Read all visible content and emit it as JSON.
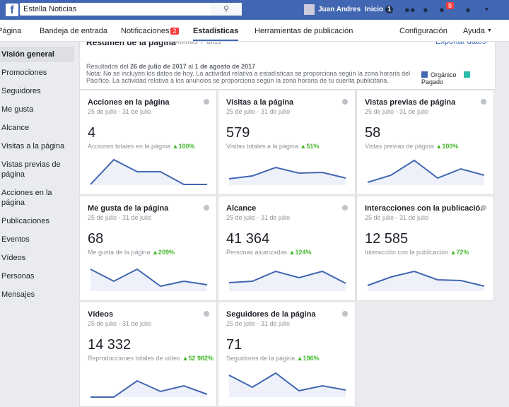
{
  "topbar": {
    "search": "Estella Noticias",
    "user": "Juan Andres",
    "home": "Inicio",
    "home_count": "1",
    "notif_count": "8"
  },
  "nav": {
    "items": [
      "Página",
      "Bandeja de entrada",
      "Notificaciones",
      "Estadísticas",
      "Herramientas de publicación"
    ],
    "notif_badge": "2",
    "config": "Configuración",
    "help": "Ayuda"
  },
  "sidebar": [
    "Visión general",
    "Promociones",
    "Seguidores",
    "Me gusta",
    "Alcance",
    "Visitas a la página",
    "Vistas previas de página",
    "Acciones en la página",
    "Publicaciones",
    "Eventos",
    "Vídeos",
    "Personas",
    "Mensajes"
  ],
  "summary": {
    "title": "Resumen de la página",
    "period": "Últimos 7 días",
    "export": "Exportar datos",
    "results_prefix": "Resultados del",
    "date_from": "26 de julio de 2017",
    "al": "al",
    "date_to": "1 de agosto de 2017",
    "note": "Nota: No se incluyen los datos de hoy. La actividad relativa a estadísticas se proporciona según la zona horaria del Pacífico. La actividad relativa a los anuncios se proporciona según la zona horaria de tu cuenta publicitaria.",
    "legend": [
      {
        "name": "Orgánico",
        "color": "#4267b2"
      },
      {
        "name": "Pagado",
        "color": "#2abba7"
      }
    ]
  },
  "cards": [
    {
      "title": "Acciones en la página",
      "dates": "25 de julio - 31 de julio",
      "value": "4",
      "caption": "Acciones totales en la página",
      "change": "100%",
      "spark": [
        1,
        36,
        19,
        19,
        1,
        1
      ]
    },
    {
      "title": "Visitas a la página",
      "dates": "25 de julio - 31 de julio",
      "value": "579",
      "caption": "Visitas totales a la página",
      "change": "51%",
      "spark": [
        9,
        13,
        25,
        17,
        18,
        10
      ]
    },
    {
      "title": "Vistas previas de página",
      "dates": "25 de julio - 31 de julio",
      "value": "58",
      "caption": "Vistas previas de página",
      "change": "100%",
      "spark": [
        4,
        14,
        35,
        10,
        23,
        14
      ]
    },
    {
      "title": "Me gusta de la página",
      "dates": "25 de julio - 31 de julio",
      "value": "68",
      "caption": "Me gusta de la página",
      "change": "209%",
      "spark": [
        31,
        14,
        31,
        7,
        14,
        9
      ]
    },
    {
      "title": "Alcance",
      "dates": "25 de julio - 31 de julio",
      "value": "41 364",
      "caption": "Personas alcanzadas",
      "change": "124%",
      "spark": [
        12,
        14,
        28,
        19,
        28,
        11
      ]
    },
    {
      "title": "Interacciones con la publicación",
      "dates": "25 de julio - 31 de julio",
      "value": "12 585",
      "caption": "Interacción con la publicación",
      "change": "72%",
      "spark": [
        8,
        20,
        28,
        16,
        15,
        7
      ]
    },
    {
      "title": "Vídeos",
      "dates": "25 de julio - 31 de julio",
      "value": "14 332",
      "caption": "Reproducciones totales de vídeo",
      "change": "52 982%",
      "spark": [
        0,
        0,
        23,
        8,
        16,
        4
      ]
    },
    {
      "title": "Seguidores de la página",
      "dates": "25 de julio - 31 de julio",
      "value": "71",
      "caption": "Seguidores de la página",
      "change": "196%",
      "spark": [
        31,
        14,
        34,
        9,
        16,
        10
      ]
    }
  ]
}
